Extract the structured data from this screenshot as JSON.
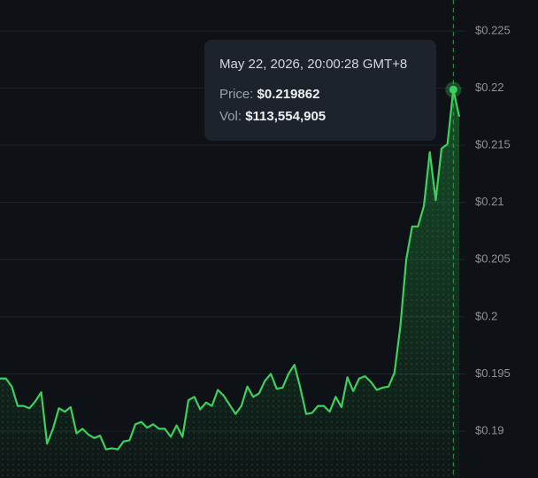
{
  "chart_data": {
    "type": "line",
    "series": [
      {
        "color": "#3ecf5e",
        "values": [
          0.1946,
          0.1946,
          0.1939,
          0.1922,
          0.1922,
          0.192,
          0.1926,
          0.1934,
          0.1889,
          0.1902,
          0.192,
          0.1917,
          0.1921,
          0.1898,
          0.1902,
          0.1897,
          0.1894,
          0.1896,
          0.1884,
          0.1885,
          0.1884,
          0.1891,
          0.1892,
          0.1906,
          0.1908,
          0.1903,
          0.1906,
          0.1902,
          0.1902,
          0.1895,
          0.1905,
          0.1895,
          0.1927,
          0.193,
          0.1919,
          0.1925,
          0.1922,
          0.1936,
          0.1931,
          0.1923,
          0.1915,
          0.1922,
          0.1939,
          0.193,
          0.1933,
          0.1944,
          0.195,
          0.1937,
          0.1938,
          0.195,
          0.1958,
          0.1938,
          0.1915,
          0.1916,
          0.1922,
          0.1922,
          0.1917,
          0.193,
          0.1921,
          0.1947,
          0.1935,
          0.1946,
          0.1948,
          0.1943,
          0.1936,
          0.1938,
          0.1939,
          0.1951,
          0.1992,
          0.205,
          0.2079,
          0.2079,
          0.2097,
          0.2144,
          0.2102,
          0.2147,
          0.2151,
          0.219862,
          0.2175
        ]
      }
    ],
    "ylim": [
      0.1859,
      0.2277
    ],
    "yticks": [
      {
        "value": 0.19,
        "label": "$0.19"
      },
      {
        "value": 0.195,
        "label": "$0.195"
      },
      {
        "value": 0.2,
        "label": "$0.2"
      },
      {
        "value": 0.205,
        "label": "$0.205"
      },
      {
        "value": 0.21,
        "label": "$0.21"
      },
      {
        "value": 0.215,
        "label": "$0.215"
      },
      {
        "value": 0.22,
        "label": "$0.22"
      },
      {
        "value": 0.225,
        "label": "$0.225"
      }
    ],
    "grid": true,
    "tooltip": {
      "date": "May 22, 2026, 20:00:28 GMT+8",
      "price_label": "Price:",
      "price": "$0.219862",
      "vol_label": "Vol:",
      "vol": "$113,554,905"
    }
  }
}
